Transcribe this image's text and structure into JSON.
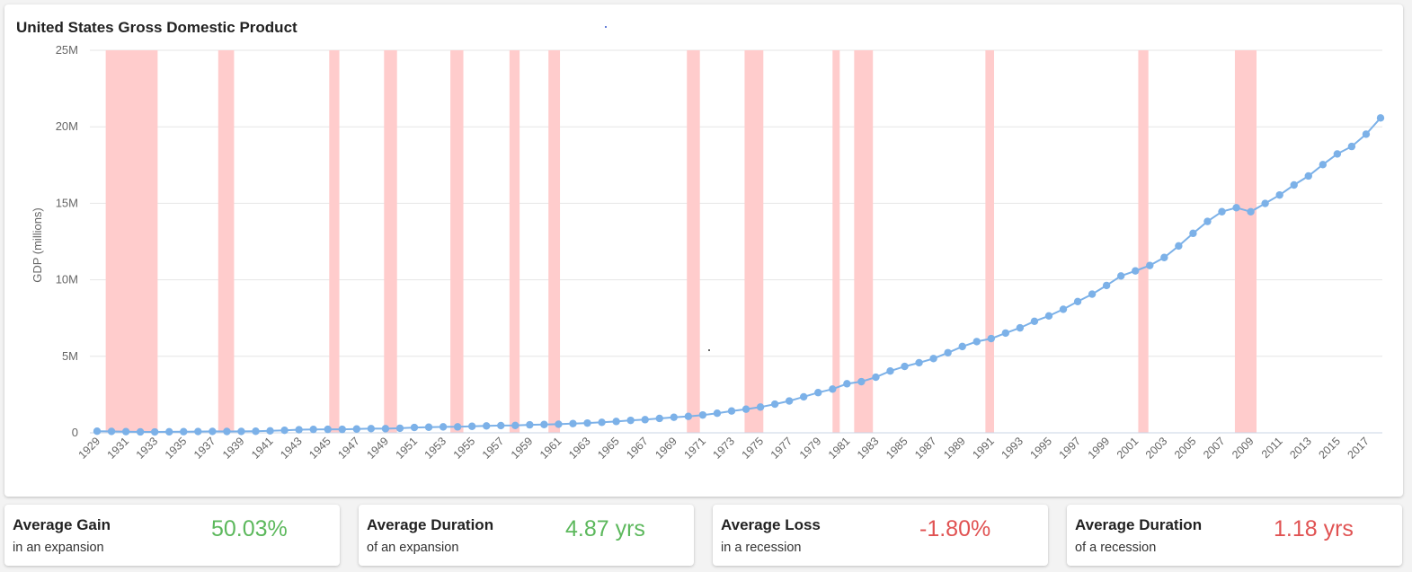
{
  "chart_data": {
    "type": "line",
    "title": "United States Gross Domestic Product",
    "ylabel": "GDP (millions)",
    "xlabel": "",
    "ylim": [
      0,
      25000000
    ],
    "yticks": [
      0,
      5000000,
      10000000,
      15000000,
      20000000,
      25000000
    ],
    "ytick_labels": [
      "0",
      "5M",
      "10M",
      "15M",
      "20M",
      "25M"
    ],
    "x_start": 1929,
    "x_end": 2018,
    "x_tick_labels": [
      "1929",
      "1931",
      "1933",
      "1935",
      "1937",
      "1939",
      "1941",
      "1943",
      "1945",
      "1947",
      "1949",
      "1951",
      "1953",
      "1955",
      "1957",
      "1959",
      "1961",
      "1963",
      "1965",
      "1967",
      "1969",
      "1971",
      "1973",
      "1975",
      "1977",
      "1979",
      "1981",
      "1983",
      "1985",
      "1987",
      "1989",
      "1991",
      "1993",
      "1995",
      "1997",
      "1999",
      "2001",
      "2003",
      "2005",
      "2007",
      "2009",
      "2011",
      "2013",
      "2015",
      "2017"
    ],
    "grid": true,
    "series": [
      {
        "color": "#7cb1e8",
        "x": [
          1929,
          1930,
          1931,
          1932,
          1933,
          1934,
          1935,
          1936,
          1937,
          1938,
          1939,
          1940,
          1941,
          1942,
          1943,
          1944,
          1945,
          1946,
          1947,
          1948,
          1949,
          1950,
          1951,
          1952,
          1953,
          1954,
          1955,
          1956,
          1957,
          1958,
          1959,
          1960,
          1961,
          1962,
          1963,
          1964,
          1965,
          1966,
          1967,
          1968,
          1969,
          1970,
          1971,
          1972,
          1973,
          1974,
          1975,
          1976,
          1977,
          1978,
          1979,
          1980,
          1981,
          1982,
          1983,
          1984,
          1985,
          1986,
          1987,
          1988,
          1989,
          1990,
          1991,
          1992,
          1993,
          1994,
          1995,
          1996,
          1997,
          1998,
          1999,
          2000,
          2001,
          2002,
          2003,
          2004,
          2005,
          2006,
          2007,
          2008,
          2009,
          2010,
          2011,
          2012,
          2013,
          2014,
          2015,
          2016,
          2017,
          2018
        ],
        "values": [
          104600,
          92200,
          77400,
          59500,
          57200,
          66800,
          74300,
          84900,
          93000,
          87400,
          93400,
          102900,
          129300,
          166000,
          203100,
          224400,
          228000,
          227500,
          249600,
          274500,
          272500,
          299800,
          346900,
          367300,
          389200,
          390500,
          425500,
          449400,
          474100,
          481200,
          521700,
          542400,
          562200,
          603900,
          637400,
          684500,
          742300,
          813400,
          859900,
          940700,
          1017600,
          1073300,
          1164900,
          1279100,
          1425400,
          1545200,
          1684900,
          1873400,
          2081800,
          2351600,
          2627300,
          2857300,
          3207000,
          3343800,
          3634000,
          4037600,
          4339000,
          4579600,
          4855200,
          5236400,
          5641600,
          5963100,
          6158100,
          6520300,
          6858600,
          7287200,
          7639700,
          8073100,
          8577600,
          9062800,
          9630700,
          10252300,
          10581800,
          10936400,
          11458200,
          12213700,
          13036600,
          13814600,
          14451900,
          14712800,
          14448900,
          14992100,
          15542600,
          16197000,
          16784900,
          17527300,
          18224800,
          18715000,
          19519400,
          20580200
        ]
      }
    ],
    "recessions": [
      [
        1929.6,
        1933.2
      ],
      [
        1937.4,
        1938.5
      ],
      [
        1945.1,
        1945.8
      ],
      [
        1948.9,
        1949.8
      ],
      [
        1953.5,
        1954.4
      ],
      [
        1957.6,
        1958.3
      ],
      [
        1960.3,
        1961.1
      ],
      [
        1969.9,
        1970.8
      ],
      [
        1973.9,
        1975.2
      ],
      [
        1980.0,
        1980.5
      ],
      [
        1981.5,
        1982.8
      ],
      [
        1990.6,
        1991.2
      ],
      [
        2001.2,
        2001.9
      ],
      [
        2007.9,
        2009.4
      ]
    ]
  },
  "stats": [
    {
      "title": "Average Gain",
      "subtitle": "in an expansion",
      "value": "50.03%",
      "tone": "good"
    },
    {
      "title": "Average Duration",
      "subtitle": "of an expansion",
      "value": "4.87 yrs",
      "tone": "good"
    },
    {
      "title": "Average Loss",
      "subtitle": "in a recession",
      "value": "-1.80%",
      "tone": "bad"
    },
    {
      "title": "Average Duration",
      "subtitle": "of a recession",
      "value": "1.18 yrs",
      "tone": "bad"
    }
  ],
  "colors": {
    "line": "#7cb1e8",
    "recession_band": "#ffcccc",
    "grid": "#e6e6e6",
    "positive": "#5cb85c",
    "negative": "#e05252"
  }
}
